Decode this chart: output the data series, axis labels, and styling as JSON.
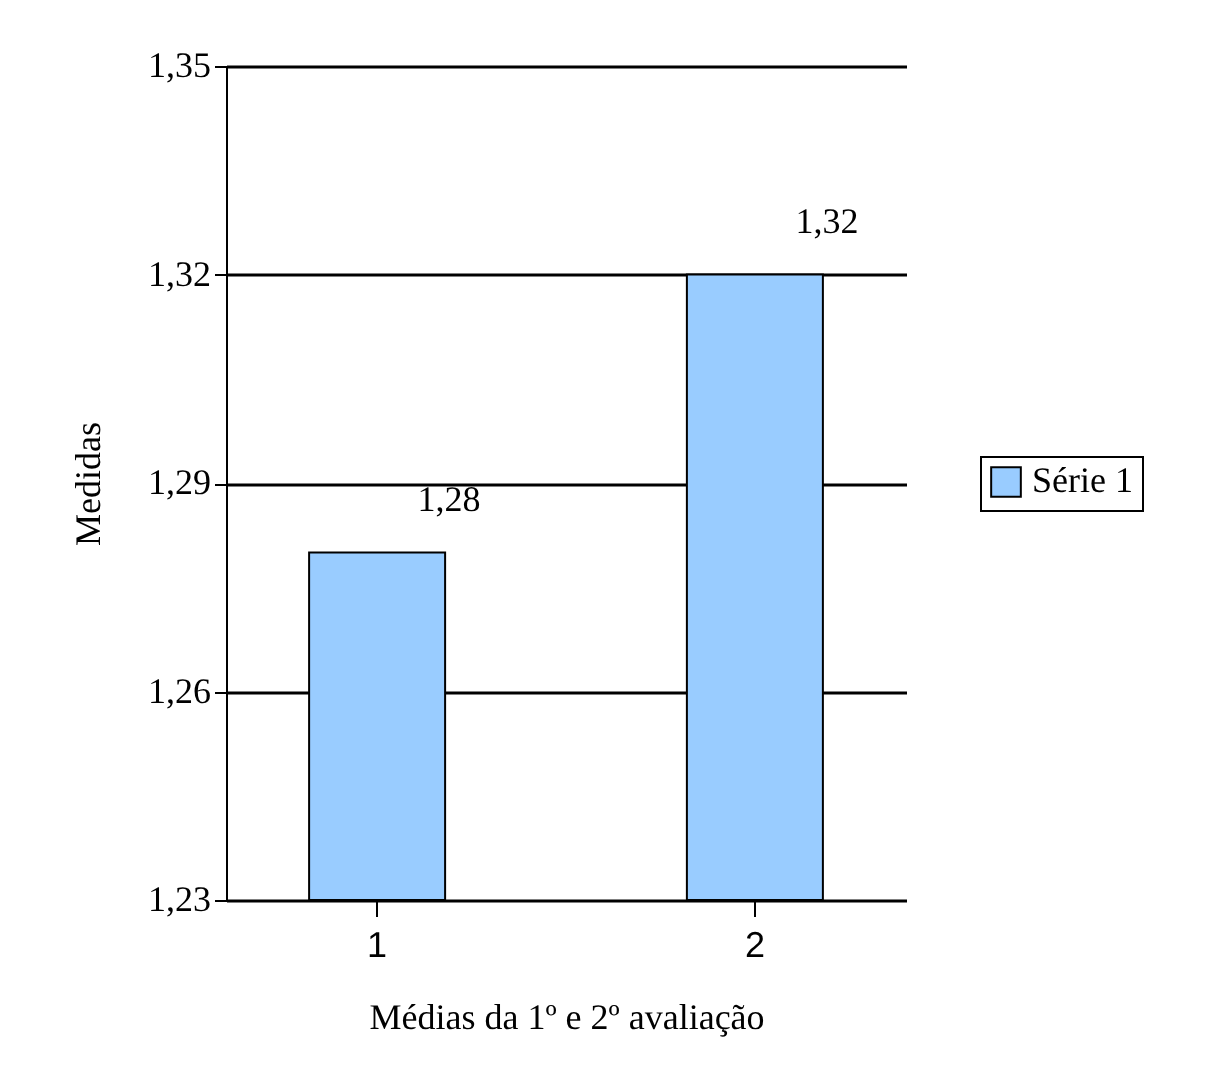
{
  "chart_data": {
    "type": "bar",
    "xlabel": "Médias da 1º e 2º avaliação",
    "ylabel": "Medidas",
    "categories": [
      "1",
      "2"
    ],
    "series": [
      {
        "name": "Série 1",
        "color": "#99ccff",
        "values": [
          1.28,
          1.32
        ],
        "value_labels": [
          "1,28",
          "1,32"
        ]
      }
    ],
    "ylim": [
      1.23,
      1.35
    ],
    "yticks": [
      {
        "value": 1.23,
        "label": "1,23"
      },
      {
        "value": 1.26,
        "label": "1,26"
      },
      {
        "value": 1.29,
        "label": "1,29"
      },
      {
        "value": 1.32,
        "label": "1,32"
      },
      {
        "value": 1.35,
        "label": "1,35"
      }
    ],
    "grid": "y",
    "legend": "right"
  }
}
